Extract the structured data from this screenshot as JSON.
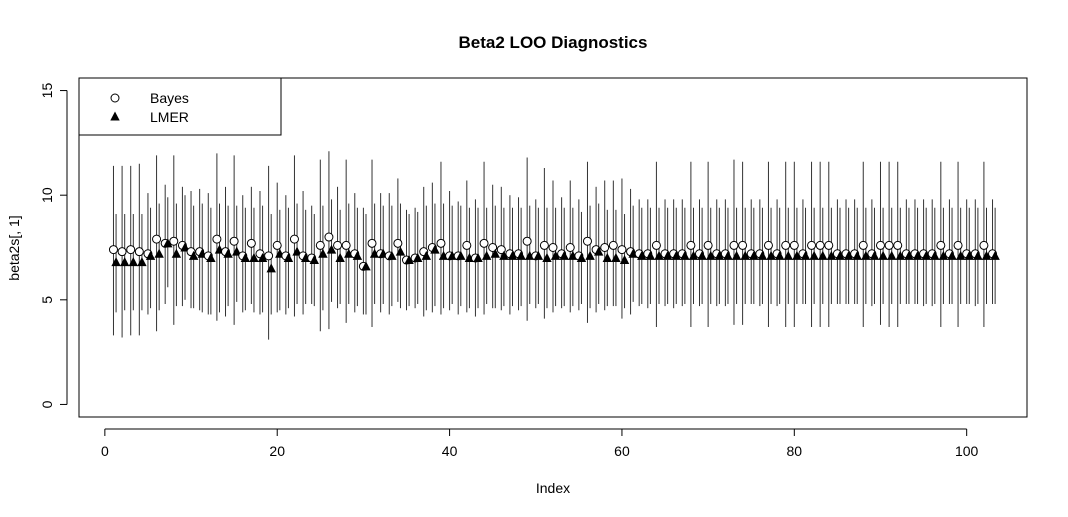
{
  "chart_data": {
    "type": "scatter",
    "title": "Beta2 LOO Diagnostics",
    "xlabel": "Index",
    "ylabel": "beta2s[, 1]",
    "xlim": [
      -3,
      107
    ],
    "ylim": [
      -0.6,
      15.6
    ],
    "xticks": [
      0,
      20,
      40,
      60,
      80,
      100
    ],
    "yticks": [
      0,
      5,
      10,
      15
    ],
    "grid": false,
    "legend": {
      "position": "top-left",
      "entries": [
        {
          "label": "Bayes",
          "marker": "open-circle"
        },
        {
          "label": "LMER",
          "marker": "filled-triangle"
        }
      ]
    },
    "x": [
      1,
      2,
      3,
      4,
      5,
      6,
      7,
      8,
      9,
      10,
      11,
      12,
      13,
      14,
      15,
      16,
      17,
      18,
      19,
      20,
      21,
      22,
      23,
      24,
      25,
      26,
      27,
      28,
      29,
      30,
      31,
      32,
      33,
      34,
      35,
      36,
      37,
      38,
      39,
      40,
      41,
      42,
      43,
      44,
      45,
      46,
      47,
      48,
      49,
      50,
      51,
      52,
      53,
      54,
      55,
      56,
      57,
      58,
      59,
      60,
      61,
      62,
      63,
      64,
      65,
      66,
      67,
      68,
      69,
      70,
      71,
      72,
      73,
      74,
      75,
      76,
      77,
      78,
      79,
      80,
      81,
      82,
      83,
      84,
      85,
      86,
      87,
      88,
      89,
      90,
      91,
      92,
      93,
      94,
      95,
      96,
      97,
      98,
      99,
      100,
      101,
      102,
      103
    ],
    "series": [
      {
        "name": "Bayes",
        "values": [
          7.4,
          7.3,
          7.4,
          7.3,
          7.2,
          7.9,
          7.7,
          7.8,
          7.6,
          7.3,
          7.3,
          7.1,
          7.9,
          7.3,
          7.8,
          7.1,
          7.7,
          7.2,
          7.1,
          7.6,
          7.1,
          7.9,
          7.1,
          7.0,
          7.6,
          8.0,
          7.6,
          7.6,
          7.2,
          6.6,
          7.7,
          7.2,
          7.1,
          7.7,
          6.9,
          7.0,
          7.3,
          7.5,
          7.7,
          7.1,
          7.1,
          7.6,
          7.0,
          7.7,
          7.5,
          7.4,
          7.2,
          7.2,
          7.8,
          7.1,
          7.6,
          7.5,
          7.2,
          7.5,
          7.1,
          7.8,
          7.4,
          7.5,
          7.6,
          7.4,
          7.3,
          7.2,
          7.2,
          7.6,
          7.2,
          7.2,
          7.2,
          7.6,
          7.2,
          7.6,
          7.2,
          7.2,
          7.6,
          7.6,
          7.2,
          7.2,
          7.6,
          7.2,
          7.6,
          7.6,
          7.2,
          7.6,
          7.6,
          7.6,
          7.2,
          7.2,
          7.2,
          7.6,
          7.2,
          7.6,
          7.6,
          7.6,
          7.2,
          7.2,
          7.2,
          7.2,
          7.6,
          7.2,
          7.6,
          7.2,
          7.2,
          7.6,
          7.2
        ],
        "lower": [
          3.3,
          3.2,
          3.3,
          3.3,
          4.3,
          3.5,
          4.8,
          3.8,
          4.7,
          4.6,
          4.5,
          4.3,
          4.0,
          4.2,
          3.8,
          4.4,
          4.8,
          4.3,
          3.1,
          4.4,
          4.3,
          4.2,
          4.3,
          4.8,
          3.5,
          3.6,
          4.6,
          3.9,
          4.4,
          4.3,
          3.7,
          4.4,
          4.3,
          4.9,
          4.5,
          4.6,
          4.2,
          4.4,
          4.3,
          4.5,
          4.3,
          4.4,
          4.2,
          4.3,
          4.6,
          4.5,
          4.3,
          4.5,
          4.0,
          4.6,
          4.1,
          4.4,
          4.6,
          4.4,
          4.5,
          3.9,
          4.4,
          4.5,
          4.7,
          4.1,
          4.3,
          4.7,
          4.6,
          3.7,
          4.7,
          4.6,
          4.7,
          3.7,
          4.7,
          3.7,
          4.7,
          4.7,
          3.8,
          3.8,
          4.8,
          4.7,
          3.7,
          4.7,
          3.7,
          3.7,
          4.8,
          3.7,
          3.7,
          3.7,
          4.8,
          4.8,
          4.8,
          3.7,
          4.7,
          3.8,
          3.7,
          3.7,
          4.8,
          4.8,
          4.7,
          4.7,
          3.7,
          4.8,
          3.7,
          4.8,
          4.7,
          3.7,
          4.8
        ],
        "upper": [
          11.4,
          11.4,
          11.4,
          11.5,
          10.1,
          11.9,
          10.5,
          11.9,
          10.4,
          10.2,
          10.3,
          10.1,
          12.0,
          10.4,
          11.9,
          10.0,
          10.4,
          10.2,
          11.4,
          10.6,
          10.0,
          11.9,
          10.2,
          9.5,
          11.7,
          12.1,
          10.4,
          11.7,
          10.1,
          9.4,
          11.7,
          10.1,
          10.1,
          10.8,
          9.3,
          9.4,
          10.4,
          10.6,
          11.6,
          10.2,
          9.7,
          10.7,
          9.8,
          11.6,
          10.5,
          10.4,
          10.0,
          9.9,
          11.8,
          9.8,
          11.3,
          10.7,
          9.9,
          10.7,
          9.8,
          11.6,
          10.4,
          10.7,
          10.7,
          10.8,
          10.3,
          9.8,
          9.8,
          11.6,
          9.8,
          9.8,
          9.8,
          11.6,
          9.8,
          11.6,
          9.8,
          9.8,
          11.7,
          11.6,
          9.8,
          9.8,
          11.6,
          9.8,
          11.6,
          11.6,
          9.8,
          11.6,
          11.6,
          11.6,
          9.8,
          9.8,
          9.8,
          11.6,
          9.8,
          11.6,
          11.6,
          11.6,
          9.8,
          9.8,
          9.8,
          9.8,
          11.6,
          9.8,
          11.6,
          9.8,
          9.8,
          11.6,
          9.8
        ]
      },
      {
        "name": "LMER",
        "values": [
          6.8,
          6.8,
          6.8,
          6.8,
          7.1,
          7.2,
          7.7,
          7.2,
          7.5,
          7.1,
          7.2,
          7.0,
          7.4,
          7.2,
          7.3,
          7.0,
          7.0,
          7.0,
          6.5,
          7.2,
          7.0,
          7.3,
          7.0,
          6.9,
          7.2,
          7.4,
          7.0,
          7.2,
          7.1,
          6.6,
          7.2,
          7.2,
          7.1,
          7.3,
          6.9,
          7.0,
          7.1,
          7.4,
          7.1,
          7.1,
          7.1,
          7.0,
          7.0,
          7.1,
          7.2,
          7.1,
          7.1,
          7.1,
          7.1,
          7.1,
          7.0,
          7.1,
          7.1,
          7.1,
          7.0,
          7.1,
          7.3,
          7.0,
          7.0,
          6.9,
          7.2,
          7.1,
          7.1,
          7.1,
          7.1,
          7.1,
          7.1,
          7.1,
          7.1,
          7.1,
          7.1,
          7.1,
          7.1,
          7.1,
          7.1,
          7.1,
          7.1,
          7.1,
          7.1,
          7.1,
          7.1,
          7.1,
          7.1,
          7.1,
          7.1,
          7.1,
          7.1,
          7.1,
          7.1,
          7.1,
          7.1,
          7.1,
          7.1,
          7.1,
          7.1,
          7.1,
          7.1,
          7.1,
          7.1,
          7.1,
          7.1,
          7.1,
          7.1
        ],
        "lower": [
          4.4,
          4.5,
          4.5,
          4.5,
          4.6,
          4.5,
          5.6,
          4.7,
          5.0,
          4.6,
          4.4,
          4.3,
          4.4,
          4.7,
          4.9,
          4.5,
          4.4,
          4.4,
          4.3,
          4.5,
          4.6,
          4.8,
          4.8,
          4.7,
          4.5,
          4.9,
          4.8,
          4.8,
          4.7,
          4.3,
          4.8,
          4.8,
          4.7,
          4.6,
          4.7,
          4.8,
          4.5,
          4.7,
          4.6,
          4.8,
          4.7,
          4.6,
          4.6,
          4.8,
          4.6,
          4.7,
          4.7,
          4.7,
          4.8,
          4.8,
          4.6,
          4.7,
          4.7,
          4.7,
          4.8,
          4.6,
          4.8,
          4.7,
          4.7,
          4.6,
          4.9,
          4.8,
          4.8,
          4.8,
          4.8,
          4.8,
          4.8,
          4.8,
          4.8,
          4.8,
          4.8,
          4.8,
          4.8,
          4.8,
          4.8,
          4.8,
          4.8,
          4.8,
          4.8,
          4.8,
          4.8,
          4.8,
          4.8,
          4.8,
          4.8,
          4.8,
          4.8,
          4.8,
          4.8,
          4.8,
          4.8,
          4.8,
          4.8,
          4.8,
          4.8,
          4.8,
          4.8,
          4.8,
          4.8,
          4.8,
          4.8,
          4.8,
          4.8
        ],
        "upper": [
          9.1,
          9.1,
          9.1,
          9.1,
          9.4,
          9.6,
          9.9,
          9.6,
          10.0,
          9.5,
          9.6,
          9.4,
          9.6,
          9.5,
          9.5,
          9.4,
          9.4,
          9.5,
          9.1,
          9.3,
          9.4,
          9.6,
          9.3,
          9.1,
          9.5,
          9.8,
          9.3,
          9.6,
          9.4,
          9.1,
          9.6,
          9.5,
          9.5,
          9.6,
          9.1,
          9.2,
          9.5,
          9.6,
          9.6,
          9.5,
          9.5,
          9.4,
          9.4,
          9.4,
          9.5,
          9.4,
          9.4,
          9.4,
          9.5,
          9.4,
          9.4,
          9.4,
          9.4,
          9.4,
          9.2,
          9.5,
          9.6,
          9.3,
          9.3,
          9.1,
          9.5,
          9.4,
          9.4,
          9.4,
          9.4,
          9.4,
          9.4,
          9.4,
          9.4,
          9.4,
          9.4,
          9.4,
          9.4,
          9.4,
          9.4,
          9.4,
          9.4,
          9.4,
          9.4,
          9.4,
          9.4,
          9.4,
          9.4,
          9.4,
          9.4,
          9.4,
          9.4,
          9.4,
          9.4,
          9.4,
          9.4,
          9.4,
          9.4,
          9.4,
          9.4,
          9.4,
          9.4,
          9.4,
          9.4,
          9.4,
          9.4,
          9.4,
          9.4
        ]
      }
    ]
  }
}
